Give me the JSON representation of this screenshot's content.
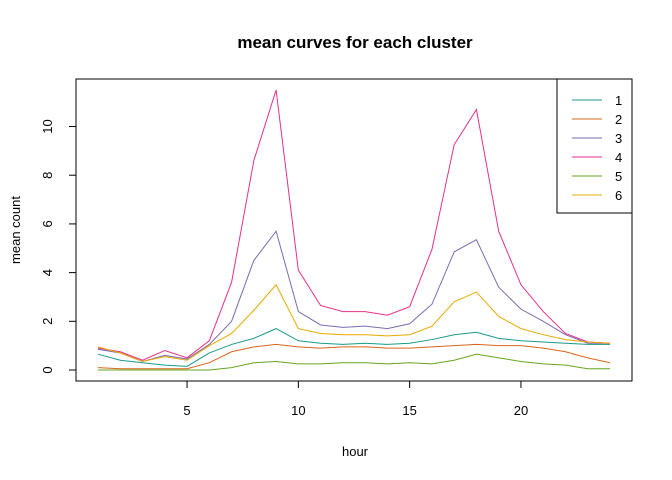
{
  "chart_data": {
    "type": "line",
    "title": "mean curves for each cluster",
    "xlabel": "hour",
    "ylabel": "mean count",
    "xlim": [
      1,
      24
    ],
    "ylim": [
      0,
      11.5
    ],
    "xticks": [
      5,
      10,
      15,
      20
    ],
    "yticks": [
      0,
      2,
      4,
      6,
      8,
      10
    ],
    "grid": false,
    "legend_position": "top-right",
    "x": [
      1,
      2,
      3,
      4,
      5,
      6,
      7,
      8,
      9,
      10,
      11,
      12,
      13,
      14,
      15,
      16,
      17,
      18,
      19,
      20,
      21,
      22,
      23,
      24
    ],
    "series": [
      {
        "name": "1",
        "color": "#1a9a8a",
        "values": [
          0.65,
          0.4,
          0.3,
          0.2,
          0.15,
          0.7,
          1.05,
          1.3,
          1.7,
          1.2,
          1.1,
          1.05,
          1.1,
          1.05,
          1.1,
          1.25,
          1.45,
          1.55,
          1.3,
          1.2,
          1.15,
          1.1,
          1.05,
          1.05
        ]
      },
      {
        "name": "2",
        "color": "#d9651a",
        "values": [
          0.1,
          0.05,
          0.05,
          0.05,
          0.05,
          0.3,
          0.75,
          0.95,
          1.05,
          0.95,
          0.9,
          0.95,
          0.95,
          0.9,
          0.9,
          0.95,
          1.0,
          1.05,
          1.0,
          1.0,
          0.9,
          0.75,
          0.5,
          0.3
        ]
      },
      {
        "name": "3",
        "color": "#7b6bb0",
        "values": [
          0.85,
          0.7,
          0.35,
          0.6,
          0.45,
          1.05,
          2.0,
          4.5,
          5.7,
          2.4,
          1.85,
          1.75,
          1.8,
          1.7,
          1.9,
          2.7,
          4.85,
          5.35,
          3.4,
          2.5,
          2.0,
          1.45,
          1.1,
          1.1
        ]
      },
      {
        "name": "4",
        "color": "#e6308a",
        "values": [
          0.9,
          0.75,
          0.4,
          0.8,
          0.5,
          1.2,
          3.6,
          8.6,
          11.5,
          4.1,
          2.65,
          2.4,
          2.4,
          2.25,
          2.6,
          4.95,
          9.25,
          10.7,
          5.7,
          3.5,
          2.4,
          1.5,
          1.15,
          1.1
        ]
      },
      {
        "name": "5",
        "color": "#66a61e",
        "values": [
          0.0,
          0.0,
          0.0,
          0.0,
          0.0,
          0.0,
          0.1,
          0.3,
          0.35,
          0.25,
          0.25,
          0.3,
          0.3,
          0.25,
          0.3,
          0.25,
          0.4,
          0.65,
          0.5,
          0.35,
          0.25,
          0.2,
          0.05,
          0.05
        ]
      },
      {
        "name": "6",
        "color": "#e6ab02",
        "values": [
          0.95,
          0.7,
          0.35,
          0.55,
          0.4,
          1.0,
          1.5,
          2.45,
          3.5,
          1.7,
          1.5,
          1.45,
          1.45,
          1.4,
          1.45,
          1.8,
          2.8,
          3.2,
          2.2,
          1.7,
          1.45,
          1.25,
          1.15,
          1.1
        ]
      }
    ]
  }
}
